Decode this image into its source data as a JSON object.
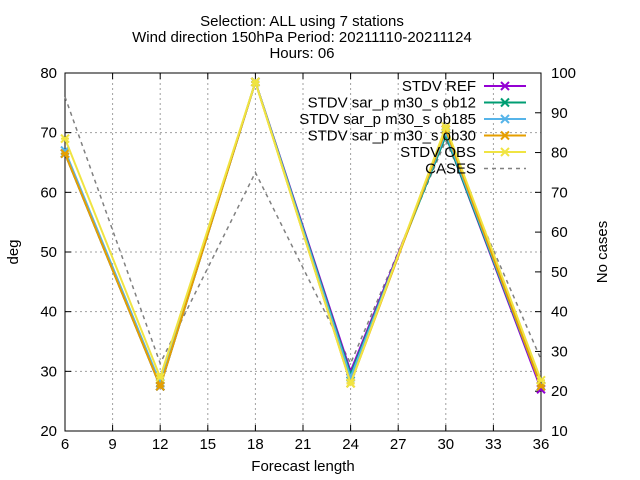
{
  "chart_data": {
    "type": "line",
    "title": [
      "Selection: ALL using     7 stations",
      "Wind direction 150hPa   Period: 20211110-20211124",
      "Hours: 06"
    ],
    "xlabel": "Forecast length",
    "ylabel": "deg",
    "y2label": "No cases",
    "xlim": [
      6,
      36
    ],
    "ylim": [
      20,
      80
    ],
    "y2lim": [
      10,
      100
    ],
    "xticks": [
      "6",
      "9",
      "12",
      "15",
      "18",
      "21",
      "24",
      "27",
      "30",
      "33",
      "36"
    ],
    "yticks": [
      "20",
      "30",
      "40",
      "50",
      "60",
      "70",
      "80"
    ],
    "y2ticks": [
      "10",
      "20",
      "30",
      "40",
      "50",
      "60",
      "70",
      "80",
      "90",
      "100"
    ],
    "grid": true,
    "legend_position": "top-right",
    "x": [
      6,
      12,
      18,
      24,
      30,
      36
    ],
    "series": [
      {
        "name": "STDV REF",
        "axis": "y",
        "color": "#9400d3",
        "marker": "x",
        "values": [
          66.5,
          27.5,
          78.5,
          30.0,
          69.5,
          27.0
        ]
      },
      {
        "name": "STDV sar_p m30_s ob12",
        "axis": "y",
        "color": "#009e73",
        "marker": "x",
        "values": [
          66.5,
          27.5,
          78.5,
          29.5,
          69.5,
          27.5
        ]
      },
      {
        "name": "STDV sar_p m30_s ob185",
        "axis": "y",
        "color": "#56b4e9",
        "marker": "x",
        "values": [
          67.0,
          28.0,
          78.5,
          29.0,
          70.0,
          27.5
        ]
      },
      {
        "name": "STDV sar_p m30_s ob30",
        "axis": "y",
        "color": "#e69f00",
        "marker": "x",
        "values": [
          66.5,
          27.5,
          78.5,
          28.0,
          70.5,
          27.5
        ]
      },
      {
        "name": "STDV OBS",
        "axis": "y",
        "color": "#f0e442",
        "marker": "x",
        "values": [
          69.0,
          29.0,
          78.5,
          28.0,
          71.0,
          28.5
        ]
      },
      {
        "name": "CASES",
        "axis": "y2",
        "color": "#808080",
        "dashed": true,
        "marker": "none",
        "values": [
          94,
          27,
          75,
          27,
          83,
          28
        ]
      }
    ]
  }
}
